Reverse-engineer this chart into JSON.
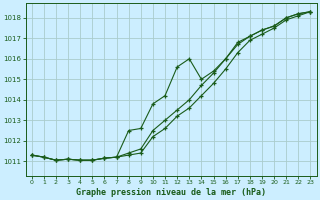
{
  "title": "Graphe pression niveau de la mer (hPa)",
  "bg_color": "#cceeff",
  "grid_color": "#aacccc",
  "line_color": "#1a5c1a",
  "xlim": [
    -0.5,
    23.5
  ],
  "ylim": [
    1010.3,
    1018.7
  ],
  "yticks": [
    1011,
    1012,
    1013,
    1014,
    1015,
    1016,
    1017,
    1018
  ],
  "xticks": [
    0,
    1,
    2,
    3,
    4,
    5,
    6,
    7,
    8,
    9,
    10,
    11,
    12,
    13,
    14,
    15,
    16,
    17,
    18,
    19,
    20,
    21,
    22,
    23
  ],
  "line1_x": [
    0,
    1,
    2,
    3,
    4,
    5,
    6,
    7,
    8,
    9,
    10,
    11,
    12,
    13,
    14,
    15,
    16,
    17,
    18,
    19,
    20,
    21,
    22,
    23
  ],
  "line1_y": [
    1011.3,
    1011.2,
    1011.05,
    1011.1,
    1011.05,
    1011.05,
    1011.15,
    1011.2,
    1011.3,
    1011.4,
    1012.2,
    1012.6,
    1013.2,
    1013.6,
    1014.2,
    1014.8,
    1015.5,
    1016.3,
    1016.9,
    1017.2,
    1017.5,
    1017.9,
    1018.1,
    1018.3
  ],
  "line2_x": [
    0,
    1,
    2,
    3,
    4,
    5,
    6,
    7,
    8,
    9,
    10,
    11,
    12,
    13,
    14,
    15,
    16,
    17,
    18,
    19,
    20,
    21,
    22,
    23
  ],
  "line2_y": [
    1011.3,
    1011.2,
    1011.05,
    1011.1,
    1011.05,
    1011.05,
    1011.15,
    1011.2,
    1011.4,
    1011.6,
    1012.5,
    1013.0,
    1013.5,
    1014.0,
    1014.7,
    1015.3,
    1016.0,
    1016.8,
    1017.1,
    1017.4,
    1017.6,
    1018.0,
    1018.2,
    1018.3
  ],
  "line3_x": [
    0,
    1,
    2,
    3,
    4,
    5,
    6,
    7,
    8,
    9,
    10,
    11,
    12,
    13,
    14,
    15,
    16,
    17,
    18,
    19,
    20,
    21,
    22,
    23
  ],
  "line3_y": [
    1011.3,
    1011.2,
    1011.05,
    1011.1,
    1011.05,
    1011.05,
    1011.15,
    1011.2,
    1012.5,
    1012.6,
    1013.8,
    1014.2,
    1015.6,
    1016.0,
    1015.0,
    1015.4,
    1016.0,
    1016.7,
    1017.1,
    1017.4,
    1017.6,
    1018.0,
    1018.2,
    1018.3
  ]
}
